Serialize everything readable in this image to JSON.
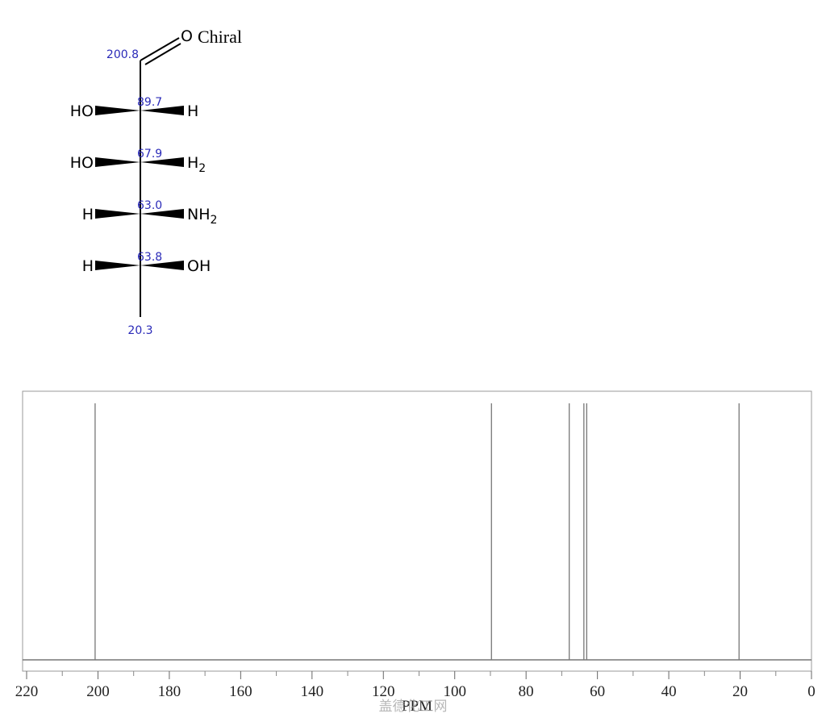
{
  "molecule": {
    "tag": "Chiral",
    "carbonyl": "O",
    "terminal_shift": "20.3",
    "carbonyl_shift": "200.8",
    "rows": [
      {
        "shift": "89.7",
        "left": "HO",
        "right": "H",
        "right_sub": null
      },
      {
        "shift": "67.9",
        "left": "HO",
        "right": "H",
        "right_sub": "2"
      },
      {
        "shift": "63.0",
        "left": "H",
        "right": "NH",
        "right_sub": "2"
      },
      {
        "shift": "63.8",
        "left": "H",
        "right": "OH",
        "right_sub": null
      }
    ]
  },
  "chart_data": {
    "type": "spectrum",
    "xlabel": "PPM",
    "watermark": "盖德化工网",
    "x": [
      200.8,
      89.7,
      67.9,
      63.8,
      63.0,
      20.3
    ],
    "color": "#777777",
    "xlim": [
      220,
      0
    ],
    "xticks": [
      220,
      200,
      180,
      160,
      140,
      120,
      100,
      80,
      60,
      40,
      20,
      0
    ],
    "minor_xticks": [
      210,
      190,
      170,
      150,
      130,
      110,
      90,
      70,
      50,
      30,
      10
    ]
  }
}
